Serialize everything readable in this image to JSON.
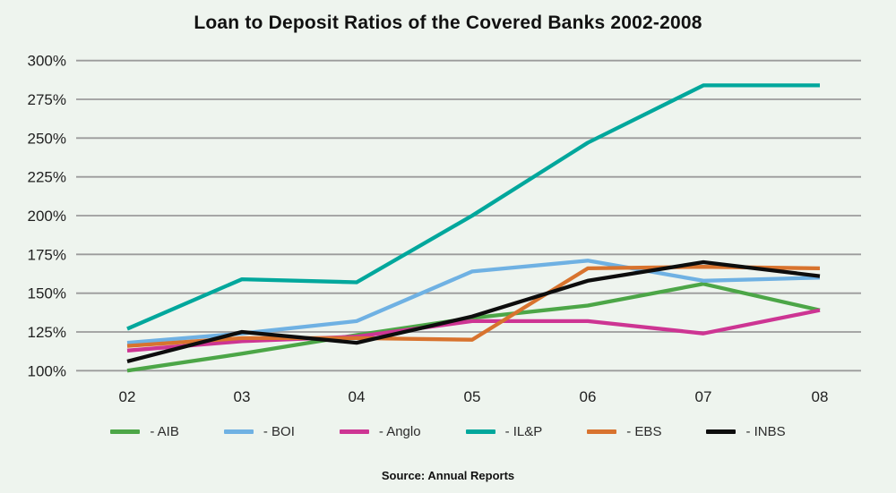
{
  "title": "Loan to Deposit Ratios of the Covered Banks 2002-2008",
  "source_note": "Source: Annual Reports",
  "colors": {
    "background": "#eef4ee",
    "gridline": "#9b9b9b",
    "axis_text": "#1f1f1f"
  },
  "chart_data": {
    "type": "line",
    "title": "Loan to Deposit Ratios of the Covered Banks 2002-2008",
    "xlabel": "",
    "ylabel": "",
    "categories": [
      "02",
      "03",
      "04",
      "05",
      "06",
      "07",
      "08"
    ],
    "ylim": [
      100,
      300
    ],
    "ytick_values": [
      300,
      275,
      250,
      225,
      200,
      175,
      150,
      125,
      100
    ],
    "ytick_labels": [
      "300%",
      "275%",
      "250%",
      "225%",
      "200%",
      "175%",
      "150%",
      "125%",
      "100%"
    ],
    "grid": true,
    "legend_position": "bottom",
    "series": [
      {
        "name": "AIB",
        "legend": "- AIB",
        "color": "#4ca647",
        "values": [
          100,
          111,
          123,
          134,
          142,
          156,
          139
        ]
      },
      {
        "name": "BOI",
        "legend": "- BOI",
        "color": "#6fb1e3",
        "values": [
          118,
          124,
          132,
          164,
          171,
          158,
          160
        ]
      },
      {
        "name": "Anglo",
        "legend": "- Anglo",
        "color": "#cd3593",
        "values": [
          113,
          119,
          122,
          132,
          132,
          124,
          139
        ]
      },
      {
        "name": "IL&P",
        "legend": "- IL&P",
        "color": "#00a79c",
        "values": [
          127,
          159,
          157,
          200,
          247,
          284,
          284
        ]
      },
      {
        "name": "EBS",
        "legend": "- EBS",
        "color": "#d8732e",
        "values": [
          116,
          121,
          121,
          120,
          166,
          167,
          166
        ]
      },
      {
        "name": "INBS",
        "legend": "- INBS",
        "color": "#0d0d0d",
        "values": [
          106,
          125,
          118,
          135,
          158,
          170,
          161
        ]
      }
    ],
    "source": "Source: Annual Reports"
  }
}
